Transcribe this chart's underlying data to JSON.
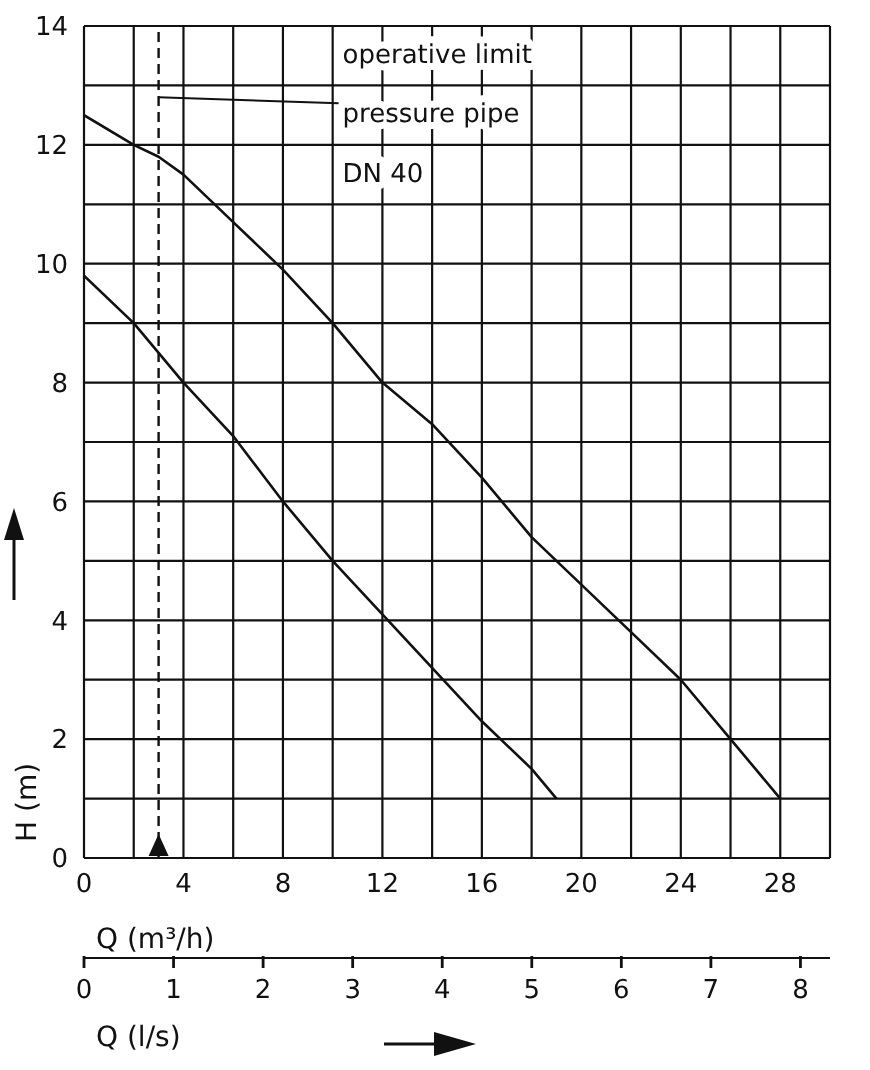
{
  "chart_data": {
    "type": "line",
    "xlabel": "Q (m³/h)",
    "ylabel": "H (m)",
    "x2label": "Q (l/s)",
    "xlim": [
      0,
      30
    ],
    "xticks": [
      0,
      {
        "value": 2,
        "label": null
      },
      4,
      {
        "value": 6,
        "label": null
      },
      8,
      {
        "value": 10,
        "label": null
      },
      12,
      {
        "value": 14,
        "label": null
      },
      16,
      {
        "value": 18,
        "label": null
      },
      20,
      {
        "value": 22,
        "label": null
      },
      24,
      {
        "value": 26,
        "label": null
      },
      28,
      {
        "value": 30,
        "label": null
      }
    ],
    "x2lim": [
      0,
      8.33
    ],
    "x2ticks": [
      0,
      1,
      2,
      3,
      4,
      5,
      6,
      7,
      8
    ],
    "ylim": [
      0,
      14
    ],
    "yticks": [
      0,
      {
        "value": 1,
        "label": null
      },
      2,
      {
        "value": 3,
        "label": null
      },
      4,
      {
        "value": 5,
        "label": null
      },
      6,
      {
        "value": 7,
        "label": null
      },
      8,
      {
        "value": 9,
        "label": null
      },
      10,
      {
        "value": 11,
        "label": null
      },
      12,
      {
        "value": 13,
        "label": null
      },
      14
    ],
    "grid": true,
    "marker": "none",
    "line_style": "solid",
    "series": [
      {
        "color": "#111111",
        "x": [
          0,
          2,
          4,
          6,
          8,
          10,
          12,
          14,
          16,
          18,
          19
        ],
        "values": [
          9.8,
          9.0,
          8.0,
          7.1,
          6.0,
          5.0,
          4.1,
          3.2,
          2.3,
          1.5,
          1.0
        ]
      },
      {
        "color": "#111111",
        "x": [
          0,
          2,
          3,
          4,
          6,
          8,
          10,
          12,
          14,
          16,
          18,
          20,
          22,
          24,
          26,
          28
        ],
        "values": [
          12.5,
          12.0,
          11.8,
          11.5,
          10.7,
          9.9,
          9.0,
          8.0,
          7.3,
          6.4,
          5.4,
          4.6,
          3.8,
          3.0,
          2.0,
          1.0
        ]
      }
    ],
    "ref_lines": [
      {
        "axis": "x",
        "value": 3,
        "color": "#111111",
        "line_style": "dashed"
      }
    ],
    "annotations": [
      {
        "text": "operative limit\npressure pipe\nDN 40",
        "x": 3,
        "y": 12.8
      }
    ]
  }
}
